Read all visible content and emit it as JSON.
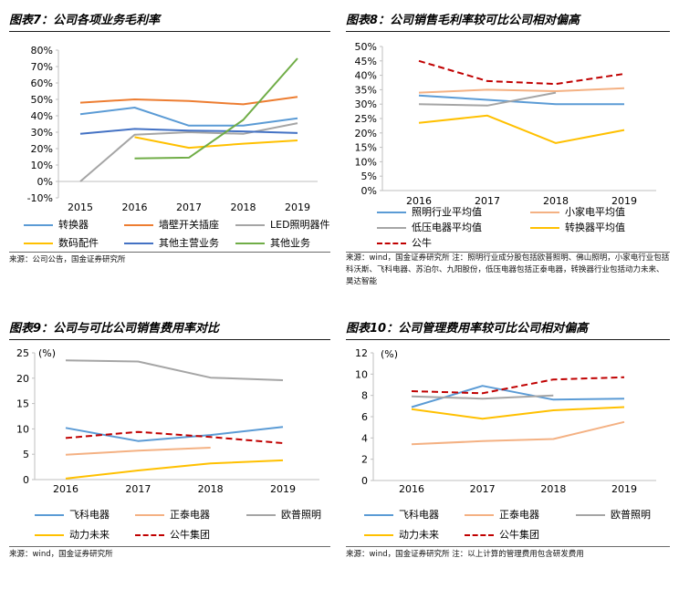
{
  "figures": [
    {
      "id": "fig7",
      "title": "图表7：公司各项业务毛利率",
      "source": "来源：公司公告，国金证券研究所",
      "chart_data": {
        "type": "line",
        "x": [
          "2015",
          "2016",
          "2017",
          "2018",
          "2019"
        ],
        "ylim": [
          -10,
          80
        ],
        "yticks": [
          "-10%",
          "0%",
          "10%",
          "20%",
          "30%",
          "40%",
          "50%",
          "60%",
          "70%",
          "80%"
        ],
        "series": [
          {
            "name": "转换器",
            "color": "#5b9bd5",
            "dashed": false,
            "values": [
              41,
              45,
              34,
              34,
              38.5
            ]
          },
          {
            "name": "墙壁开关插座",
            "color": "#ed7d31",
            "dashed": false,
            "values": [
              48,
              50,
              49,
              47,
              51.5
            ]
          },
          {
            "name": "LED照明器件",
            "color": "#a5a5a5",
            "dashed": false,
            "values": [
              0,
              28.5,
              30,
              29,
              35.5
            ]
          },
          {
            "name": "数码配件",
            "color": "#ffc000",
            "dashed": false,
            "values": [
              null,
              27,
              20.5,
              23,
              25
            ]
          },
          {
            "name": "其他主营业务",
            "color": "#4472c4",
            "dashed": false,
            "values": [
              29,
              32,
              31,
              30.5,
              29.5
            ]
          },
          {
            "name": "其他业务",
            "color": "#70ad47",
            "dashed": false,
            "values": [
              null,
              14,
              14.5,
              37.5,
              75
            ]
          }
        ]
      }
    },
    {
      "id": "fig8",
      "title": "图表8：公司销售毛利率较可比公司相对偏高",
      "source": "来源：wind，国金证券研究所 注：照明行业成分股包括欧普照明、佛山照明，小家电行业包括科沃斯、飞科电器、苏泊尔、九阳股份，低压电器包括正泰电器，转换器行业包括动力未来、昊达智能",
      "chart_data": {
        "type": "line",
        "x": [
          "2016",
          "2017",
          "2018",
          "2019"
        ],
        "ylim": [
          0,
          50
        ],
        "yticks": [
          "0%",
          "5%",
          "10%",
          "15%",
          "20%",
          "25%",
          "30%",
          "35%",
          "40%",
          "45%",
          "50%"
        ],
        "series": [
          {
            "name": "照明行业平均值",
            "color": "#5b9bd5",
            "dashed": false,
            "values": [
              33,
              31.5,
              30,
              30
            ]
          },
          {
            "name": "小家电平均值",
            "color": "#f4b183",
            "dashed": false,
            "values": [
              34,
              35,
              34.5,
              35.5
            ]
          },
          {
            "name": "低压电器平均值",
            "color": "#a5a5a5",
            "dashed": false,
            "values": [
              30,
              29.5,
              34,
              null
            ]
          },
          {
            "name": "转换器平均值",
            "color": "#ffc000",
            "dashed": false,
            "values": [
              23.5,
              26,
              16.5,
              21
            ]
          },
          {
            "name": "公牛",
            "color": "#c00000",
            "dashed": true,
            "values": [
              45,
              38,
              37,
              40.5
            ]
          }
        ]
      }
    },
    {
      "id": "fig9",
      "title": "图表9：公司与可比公司销售费用率对比",
      "source": "来源：wind，国金证券研究所",
      "chart_data": {
        "type": "line",
        "unit_label": "(%)",
        "x": [
          "2016",
          "2017",
          "2018",
          "2019"
        ],
        "ylim": [
          0,
          25
        ],
        "yticks": [
          "0",
          "5",
          "10",
          "15",
          "20",
          "25"
        ],
        "series": [
          {
            "name": "飞科电器",
            "color": "#5b9bd5",
            "dashed": false,
            "values": [
              10.2,
              7.6,
              8.8,
              10.4
            ]
          },
          {
            "name": "正泰电器",
            "color": "#f4b183",
            "dashed": false,
            "values": [
              4.9,
              5.7,
              6.3,
              null
            ]
          },
          {
            "name": "欧普照明",
            "color": "#a5a5a5",
            "dashed": false,
            "values": [
              23.5,
              23.3,
              20.1,
              19.6
            ]
          },
          {
            "name": "动力未来",
            "color": "#ffc000",
            "dashed": false,
            "values": [
              0.2,
              1.8,
              3.2,
              3.8
            ]
          },
          {
            "name": "公牛集团",
            "color": "#c00000",
            "dashed": true,
            "values": [
              8.2,
              9.4,
              8.4,
              7.2
            ]
          }
        ]
      }
    },
    {
      "id": "fig10",
      "title": "图表10：公司管理费用率较可比公司相对偏高",
      "source": "来源：wind，国金证券研究所 注：以上计算的管理费用包含研发费用",
      "chart_data": {
        "type": "line",
        "unit_label": "(%)",
        "x": [
          "2016",
          "2017",
          "2018",
          "2019"
        ],
        "ylim": [
          0,
          12
        ],
        "yticks": [
          "0",
          "2",
          "4",
          "6",
          "8",
          "10",
          "12"
        ],
        "series": [
          {
            "name": "飞科电器",
            "color": "#5b9bd5",
            "dashed": false,
            "values": [
              6.9,
              8.9,
              7.6,
              7.7
            ]
          },
          {
            "name": "正泰电器",
            "color": "#f4b183",
            "dashed": false,
            "values": [
              3.4,
              3.7,
              3.9,
              5.5
            ]
          },
          {
            "name": "欧普照明",
            "color": "#a5a5a5",
            "dashed": false,
            "values": [
              7.9,
              7.7,
              8.0,
              null
            ]
          },
          {
            "name": "动力未来",
            "color": "#ffc000",
            "dashed": false,
            "values": [
              6.7,
              5.8,
              6.6,
              6.9
            ]
          },
          {
            "name": "公牛集团",
            "color": "#c00000",
            "dashed": true,
            "values": [
              8.4,
              8.2,
              9.5,
              9.7
            ]
          }
        ]
      }
    }
  ]
}
